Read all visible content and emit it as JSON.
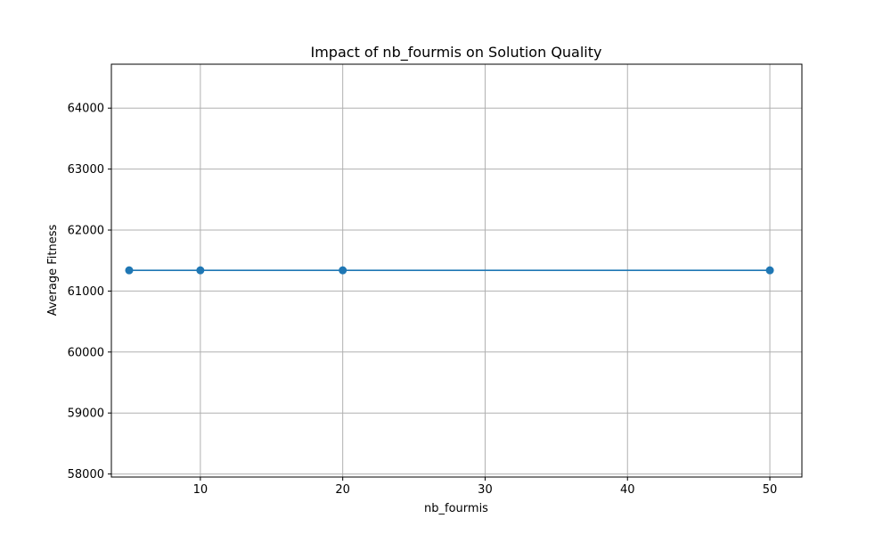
{
  "chart_data": {
    "type": "line",
    "title": "Impact of nb_fourmis on Solution Quality",
    "xlabel": "nb_fourmis",
    "ylabel": "Average Fitness",
    "xlim": [
      3.75,
      52.25
    ],
    "ylim": [
      57950,
      64720
    ],
    "xticks": [
      10,
      20,
      30,
      40,
      50
    ],
    "yticks": [
      58000,
      59000,
      60000,
      61000,
      62000,
      63000,
      64000
    ],
    "grid": true,
    "series": [
      {
        "x": [
          5,
          10,
          20,
          50
        ],
        "y": [
          61340,
          61340,
          61340,
          61340
        ],
        "color": "#1f77b4",
        "marker": "circle"
      }
    ]
  }
}
